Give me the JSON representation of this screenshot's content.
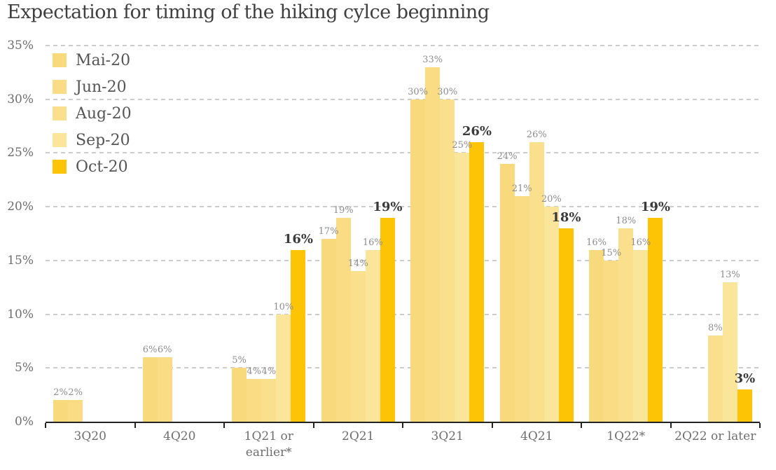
{
  "title": "Expectation for timing of the hiking cylce beginning",
  "chart_data": {
    "type": "bar",
    "title": "Expectation for timing of the hiking cylce beginning",
    "categories": [
      "3Q20",
      "4Q20",
      "1Q21 or earlier*",
      "2Q21",
      "3Q21",
      "4Q21",
      "1Q22*",
      "2Q22 or later"
    ],
    "series": [
      {
        "name": "Mai-20",
        "color": "#F8D97B",
        "values": [
          2,
          6,
          5,
          17,
          30,
          24,
          16,
          null
        ]
      },
      {
        "name": "Jun-20",
        "color": "#F9DC84",
        "values": [
          2,
          6,
          4,
          19,
          33,
          21,
          15,
          null
        ]
      },
      {
        "name": "Aug-20",
        "color": "#FAE08C",
        "values": [
          null,
          null,
          4,
          14,
          30,
          26,
          18,
          8
        ]
      },
      {
        "name": "Sep-20",
        "color": "#FBE59B",
        "values": [
          null,
          null,
          10,
          16,
          25,
          20,
          16,
          13
        ]
      },
      {
        "name": "Oct-20",
        "color": "#FCC404",
        "values": [
          null,
          null,
          16,
          19,
          26,
          18,
          19,
          3
        ],
        "emphasized": true
      }
    ],
    "value_label_suffix": "%",
    "xlabel": "",
    "ylabel": "",
    "ylim": [
      0,
      35
    ],
    "y_tick_step": 5,
    "y_ticks": [
      "0%",
      "5%",
      "10%",
      "15%",
      "20%",
      "25%",
      "30%",
      "35%"
    ],
    "grid": "horizontal-dashed",
    "legend_position": "top-left-inside",
    "value_labels": "above-bars; Oct-20 series emphasized (larger, bold, dark)"
  }
}
